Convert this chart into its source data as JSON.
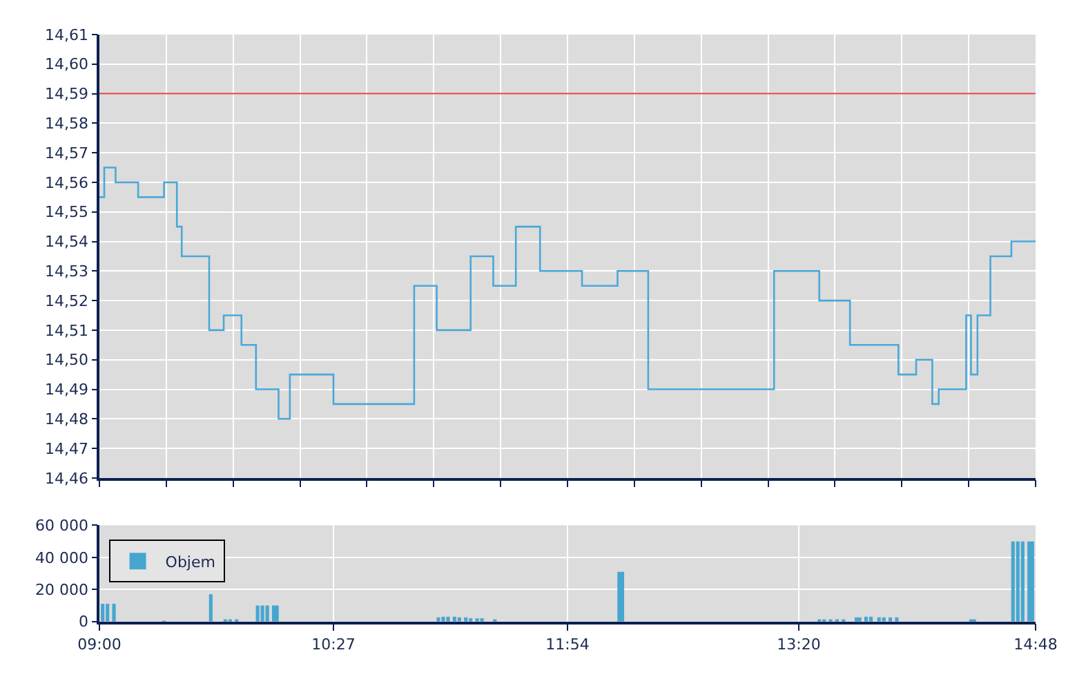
{
  "chart_data": [
    {
      "type": "step",
      "color": "#4aa8d8",
      "line_style": "solid",
      "marker": "none",
      "grid": true,
      "legend": false,
      "tick_labels": "y",
      "x": [
        9.0,
        9.03,
        9.1,
        9.24,
        9.4,
        9.48,
        9.51,
        9.68,
        9.77,
        9.88,
        9.97,
        10.11,
        10.18,
        10.45,
        10.95,
        11.09,
        11.3,
        11.44,
        11.58,
        11.73,
        11.99,
        12.21,
        12.4,
        13.18,
        13.46,
        13.65,
        13.95,
        14.06,
        14.16,
        14.2,
        14.37,
        14.4,
        14.44,
        14.52,
        14.65,
        14.8
      ],
      "values": [
        14.555,
        14.565,
        14.56,
        14.555,
        14.56,
        14.545,
        14.535,
        14.51,
        14.515,
        14.505,
        14.49,
        14.48,
        14.495,
        14.485,
        14.525,
        14.51,
        14.535,
        14.525,
        14.545,
        14.53,
        14.525,
        14.53,
        14.49,
        14.53,
        14.52,
        14.505,
        14.495,
        14.5,
        14.485,
        14.49,
        14.515,
        14.495,
        14.515,
        14.535,
        14.54,
        14.54
      ],
      "xlim": [
        9.0,
        14.8
      ],
      "xticks": [
        {
          "value": 9.0,
          "label": null
        },
        {
          "value": 9.414,
          "label": null
        },
        {
          "value": 9.829,
          "label": null
        },
        {
          "value": 10.243,
          "label": null
        },
        {
          "value": 10.657,
          "label": null
        },
        {
          "value": 11.071,
          "label": null
        },
        {
          "value": 11.486,
          "label": null
        },
        {
          "value": 11.9,
          "label": null
        },
        {
          "value": 12.314,
          "label": null
        },
        {
          "value": 12.729,
          "label": null
        },
        {
          "value": 13.143,
          "label": null
        },
        {
          "value": 13.557,
          "label": null
        },
        {
          "value": 13.971,
          "label": null
        },
        {
          "value": 14.386,
          "label": null
        },
        {
          "value": 14.8,
          "label": null
        }
      ],
      "ylim": [
        14.46,
        14.61
      ],
      "yticks": [
        {
          "value": 14.46,
          "label": "14,46"
        },
        {
          "value": 14.47,
          "label": "14,47"
        },
        {
          "value": 14.48,
          "label": "14,48"
        },
        {
          "value": 14.49,
          "label": "14,49"
        },
        {
          "value": 14.5,
          "label": "14,50"
        },
        {
          "value": 14.51,
          "label": "14,51"
        },
        {
          "value": 14.52,
          "label": "14,52"
        },
        {
          "value": 14.53,
          "label": "14,53"
        },
        {
          "value": 14.54,
          "label": "14,54"
        },
        {
          "value": 14.55,
          "label": "14,55"
        },
        {
          "value": 14.56,
          "label": "14,56"
        },
        {
          "value": 14.57,
          "label": "14,57"
        },
        {
          "value": 14.58,
          "label": "14,58"
        },
        {
          "value": 14.59,
          "label": "14,59"
        },
        {
          "value": 14.6,
          "label": "14,60"
        },
        {
          "value": 14.61,
          "label": "14,61"
        }
      ],
      "ref_lines": [
        {
          "axis": "y",
          "value": 14.59,
          "color": "#e04040",
          "line_style": "solid"
        }
      ]
    },
    {
      "type": "bar",
      "grid": true,
      "legend": "top left",
      "series": [
        {
          "name": "Objem",
          "color": "#46a6d0",
          "x": [
            9.02,
            9.05,
            9.09,
            9.4,
            9.69,
            9.78,
            9.81,
            9.85,
            9.98,
            10.01,
            10.04,
            10.08,
            10.1,
            11.1,
            11.13,
            11.16,
            11.2,
            11.23,
            11.27,
            11.3,
            11.34,
            11.37,
            11.45,
            12.22,
            12.24,
            13.46,
            13.49,
            13.53,
            13.57,
            13.61,
            13.69,
            13.71,
            13.75,
            13.78,
            13.83,
            13.86,
            13.9,
            13.94,
            14.4,
            14.42,
            14.66,
            14.69,
            14.72,
            14.76,
            14.78
          ],
          "values": [
            11000,
            11000,
            11000,
            500,
            17000,
            1000,
            1000,
            1000,
            10000,
            10000,
            10000,
            10000,
            10000,
            2500,
            3000,
            3000,
            3000,
            2500,
            2500,
            2000,
            2000,
            2000,
            1000,
            31000,
            31000,
            1000,
            1000,
            1000,
            1000,
            1000,
            2500,
            2500,
            3000,
            3000,
            2500,
            2500,
            2500,
            2500,
            1000,
            1000,
            50000,
            50000,
            50000,
            50000,
            50000
          ]
        }
      ],
      "xlim": [
        9.0,
        14.8
      ],
      "xticks": [
        {
          "value": 9.0,
          "label": "09:00"
        },
        {
          "value": 10.45,
          "label": "10:27"
        },
        {
          "value": 11.9,
          "label": "11:54"
        },
        {
          "value": 13.333,
          "label": "13:20"
        },
        {
          "value": 14.8,
          "label": "14:48"
        }
      ],
      "ylim": [
        0,
        60000
      ],
      "yticks": [
        {
          "value": 0,
          "label": "0"
        },
        {
          "value": 20000,
          "label": "20 000"
        },
        {
          "value": 40000,
          "label": "40 000"
        },
        {
          "value": 60000,
          "label": "60 000"
        }
      ]
    }
  ]
}
